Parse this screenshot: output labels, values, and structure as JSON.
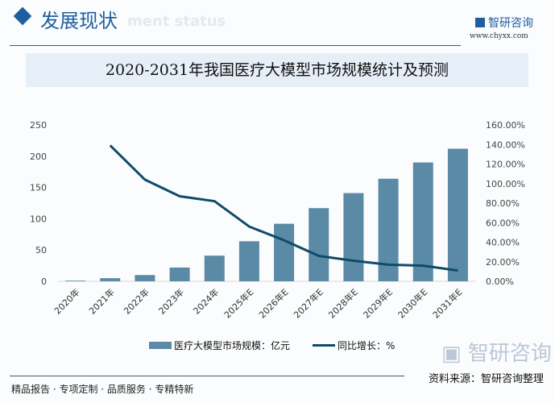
{
  "header": {
    "section_title": "发展现状",
    "section_subtitle": "ment status",
    "brand": "智研咨询",
    "url": "www.chyxx.com"
  },
  "colors": {
    "bar": "#5b8aa6",
    "line": "#0e4c6b",
    "accent": "#1f5fa0",
    "title_bg": "#e6eff8"
  },
  "chart_data": {
    "type": "bar",
    "title": "2020-2031年我国医疗大模型市场规模统计及预测",
    "categories": [
      "2020年",
      "2021年",
      "2022年",
      "2023年",
      "2024年",
      "2025年E",
      "2026年E",
      "2027年E",
      "2028年E",
      "2029年E",
      "2030年E",
      "2031年E"
    ],
    "series": [
      {
        "name": "医疗大模型市场规模：亿元",
        "type": "bar",
        "axis": "left",
        "values": [
          1,
          5,
          10,
          22,
          41,
          64,
          92,
          117,
          141,
          164,
          190,
          212
        ]
      },
      {
        "name": "同比增长：%",
        "type": "line",
        "axis": "right",
        "values": [
          null,
          139,
          104,
          87,
          82,
          56,
          42,
          26,
          21,
          17,
          16,
          11
        ]
      }
    ],
    "ylim_left": [
      0,
      250
    ],
    "yticks_left": [
      "0",
      "50",
      "100",
      "150",
      "200",
      "250"
    ],
    "ylim_right": [
      0,
      160
    ],
    "yticks_right": [
      "0.00%",
      "20.00%",
      "40.00%",
      "60.00%",
      "80.00%",
      "100.00%",
      "120.00%",
      "140.00%",
      "160.00%"
    ],
    "grid": false,
    "legend_placement": "bottom"
  },
  "footer": {
    "source": "资料来源：智研咨询整理",
    "slogan": "精品报告 · 专项定制 · 品质服务 · 专精特新",
    "watermark": "智研咨询"
  }
}
